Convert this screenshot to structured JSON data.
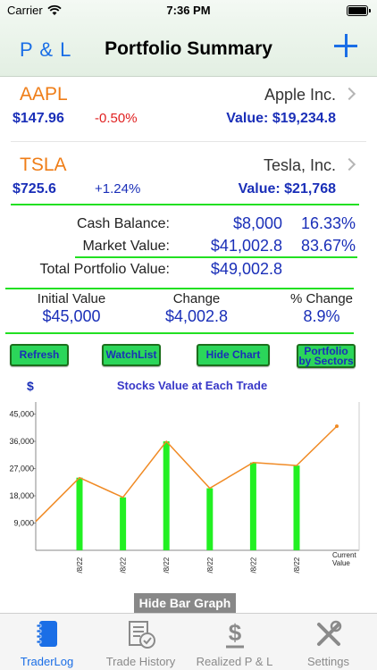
{
  "status": {
    "carrier": "Carrier",
    "time": "7:36 PM"
  },
  "nav": {
    "left": "P & L",
    "title": "Portfolio Summary"
  },
  "stocks": [
    {
      "symbol": "AAPL",
      "name": "Apple Inc.",
      "price": "$147.96",
      "change": "-0.50%",
      "change_color": "#e02020",
      "value": "Value: $19,234.8"
    },
    {
      "symbol": "TSLA",
      "name": "Tesla, Inc.",
      "price": "$725.6",
      "change": "+1.24%",
      "change_color": "#1a2fb8",
      "value": "Value: $21,768"
    }
  ],
  "balance": {
    "cash_label": "Cash Balance:",
    "cash_value": "$8,000",
    "cash_pct": "16.33%",
    "market_label": "Market Value:",
    "market_value": "$41,002.8",
    "market_pct": "83.67%",
    "total_label": "Total Portfolio Value:",
    "total_value": "$49,002.8"
  },
  "summary": {
    "initial_label": "Initial Value",
    "initial_value": "$45,000",
    "change_label": "Change",
    "change_value": "$4,002.8",
    "pct_label": "% Change",
    "pct_value": "8.9%"
  },
  "buttons": {
    "refresh": "Refresh",
    "watchlist": "WatchList",
    "hide_chart": "Hide Chart",
    "portfolio_line1": "Portfolio",
    "portfolio_line2": "by Sectors"
  },
  "chart_data": {
    "type": "bar",
    "title": "Stocks Value at Each Trade",
    "ylabel": "$",
    "yticks": [
      "9,000",
      "18,000",
      "27,000",
      "36,000",
      "45,000"
    ],
    "ylim": [
      0,
      49000
    ],
    "categories": [
      "6/8/22",
      "6/8/22",
      "6/8/22",
      "6/8/22",
      "6/8/22",
      "6/8/22",
      "Current Value"
    ],
    "bar_values": [
      24000,
      17500,
      36000,
      20500,
      29000,
      28000
    ],
    "line_values": [
      9500,
      24000,
      17500,
      36000,
      20500,
      29000,
      28000,
      41000
    ],
    "bar_color": "#22f022",
    "line_color": "#f08a24",
    "grid": false
  },
  "hide_bar_graph": "Hide Bar Graph",
  "tabs": [
    {
      "label": "TraderLog",
      "icon": "notebook-icon",
      "active": true
    },
    {
      "label": "Trade History",
      "icon": "history-icon",
      "active": false
    },
    {
      "label": "Realized P & L",
      "icon": "dollar-icon",
      "active": false
    },
    {
      "label": "Settings",
      "icon": "tools-icon",
      "active": false
    }
  ]
}
